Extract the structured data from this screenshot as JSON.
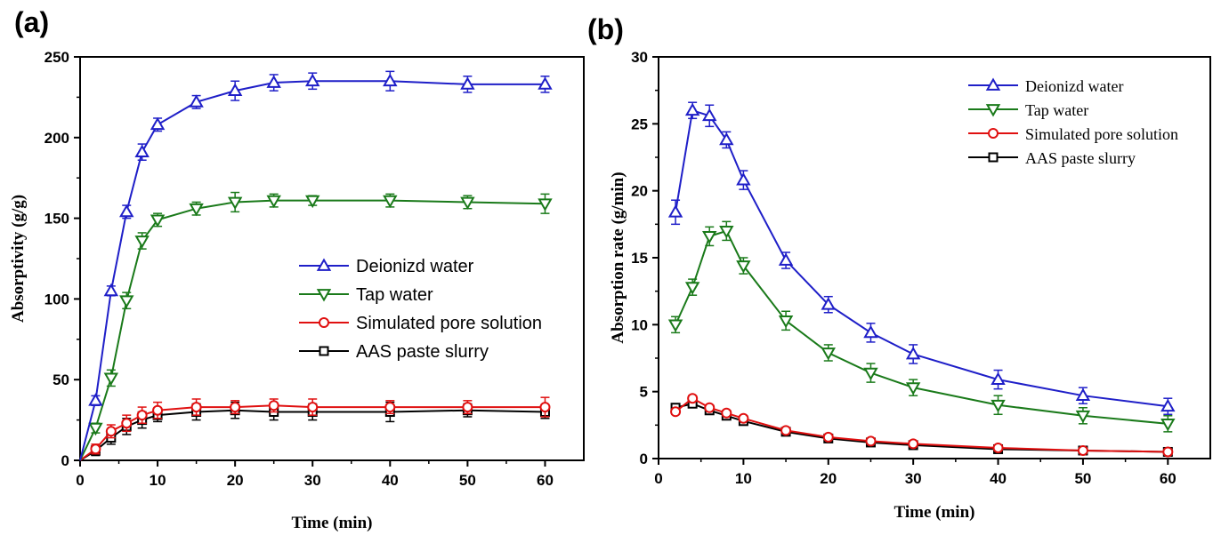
{
  "chart_data": [
    {
      "panel": "(a)",
      "type": "line",
      "title": "",
      "xlabel": "Time (min)",
      "ylabel": "Absorptivity (g/g)",
      "xlim": [
        0,
        65
      ],
      "ylim": [
        0,
        250
      ],
      "xticks": [
        0,
        10,
        20,
        30,
        40,
        50,
        60
      ],
      "yticks": [
        0,
        50,
        100,
        150,
        200,
        250
      ],
      "legend_position": "center-right",
      "x": [
        0,
        2,
        4,
        6,
        8,
        10,
        15,
        20,
        25,
        30,
        40,
        50,
        60
      ],
      "series": [
        {
          "name": "Deionizd water",
          "color": "#1f1fc8",
          "marker": "triangle-up",
          "values": [
            0,
            37,
            105,
            154,
            191,
            208,
            222,
            229,
            234,
            235,
            235,
            233,
            233
          ],
          "errors": [
            0,
            3,
            3,
            4,
            5,
            4,
            4,
            6,
            5,
            5,
            6,
            5,
            5
          ]
        },
        {
          "name": "Tap water",
          "color": "#1a7a1a",
          "marker": "triangle-down",
          "values": [
            0,
            20,
            51,
            99,
            136,
            149,
            156,
            160,
            161,
            161,
            161,
            160,
            159
          ],
          "errors": [
            0,
            3,
            5,
            5,
            5,
            4,
            4,
            6,
            4,
            3,
            4,
            4,
            6
          ]
        },
        {
          "name": "Simulated pore solution",
          "color": "#e01010",
          "marker": "circle",
          "values": [
            0,
            7,
            18,
            23,
            28,
            31,
            33,
            33,
            34,
            33,
            33,
            33,
            33
          ],
          "errors": [
            0,
            3,
            4,
            5,
            5,
            5,
            5,
            4,
            4,
            5,
            4,
            4,
            6
          ]
        },
        {
          "name": "AAS paste slurry",
          "color": "#000000",
          "marker": "square",
          "values": [
            0,
            6,
            14,
            21,
            25,
            28,
            30,
            31,
            30,
            30,
            30,
            31,
            30
          ],
          "errors": [
            0,
            3,
            4,
            5,
            5,
            4,
            5,
            5,
            5,
            5,
            6,
            4,
            4
          ]
        }
      ]
    },
    {
      "panel": "(b)",
      "type": "line",
      "title": "",
      "xlabel": "Time (min)",
      "ylabel": "Absorption rate (g/min)",
      "xlim": [
        0,
        65
      ],
      "ylim": [
        0,
        30
      ],
      "xticks": [
        0,
        10,
        20,
        30,
        40,
        50,
        60
      ],
      "yticks": [
        0,
        5,
        10,
        15,
        20,
        25,
        30
      ],
      "legend_position": "top-right",
      "x": [
        2,
        4,
        6,
        8,
        10,
        15,
        20,
        25,
        30,
        40,
        50,
        60
      ],
      "series": [
        {
          "name": "Deionizd water",
          "color": "#1f1fc8",
          "marker": "triangle-up",
          "values": [
            18.4,
            26.0,
            25.6,
            23.8,
            20.8,
            14.8,
            11.5,
            9.4,
            7.8,
            5.9,
            4.7,
            3.9
          ],
          "errors": [
            0.9,
            0.6,
            0.8,
            0.6,
            0.7,
            0.6,
            0.6,
            0.7,
            0.7,
            0.7,
            0.6,
            0.6
          ]
        },
        {
          "name": "Tap water",
          "color": "#1a7a1a",
          "marker": "triangle-down",
          "values": [
            10.0,
            12.8,
            16.6,
            17.0,
            14.4,
            10.3,
            7.9,
            6.4,
            5.3,
            4.0,
            3.2,
            2.6
          ],
          "errors": [
            0.6,
            0.6,
            0.7,
            0.7,
            0.6,
            0.7,
            0.6,
            0.7,
            0.6,
            0.7,
            0.6,
            0.6
          ]
        },
        {
          "name": "Simulated pore solution",
          "color": "#e01010",
          "marker": "circle",
          "values": [
            3.5,
            4.5,
            3.8,
            3.4,
            3.0,
            2.1,
            1.6,
            1.3,
            1.1,
            0.8,
            0.6,
            0.5
          ],
          "errors": [
            0.2,
            0.2,
            0.2,
            0.2,
            0.2,
            0.2,
            0.15,
            0.15,
            0.15,
            0.15,
            0.15,
            0.1
          ]
        },
        {
          "name": "AAS paste slurry",
          "color": "#000000",
          "marker": "square",
          "values": [
            3.8,
            4.1,
            3.6,
            3.2,
            2.8,
            2.0,
            1.5,
            1.2,
            1.0,
            0.7,
            0.6,
            0.5
          ],
          "errors": [
            0.2,
            0.2,
            0.2,
            0.2,
            0.2,
            0.2,
            0.15,
            0.15,
            0.15,
            0.15,
            0.1,
            0.1
          ]
        }
      ]
    }
  ]
}
